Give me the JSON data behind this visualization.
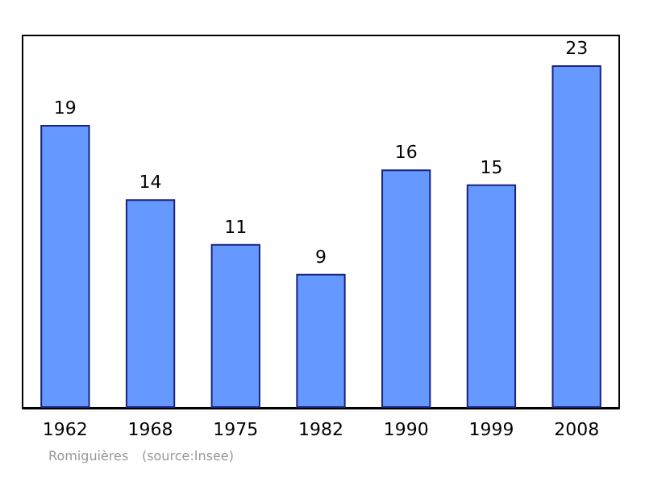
{
  "chart_data": {
    "type": "bar",
    "categories": [
      "1962",
      "1968",
      "1975",
      "1982",
      "1990",
      "1999",
      "2008"
    ],
    "values": [
      19,
      14,
      11,
      9,
      16,
      15,
      23
    ],
    "color": "#6699ff",
    "data_labels": true,
    "annotations": [
      "Romiguières",
      "(source:Insee)"
    ]
  }
}
